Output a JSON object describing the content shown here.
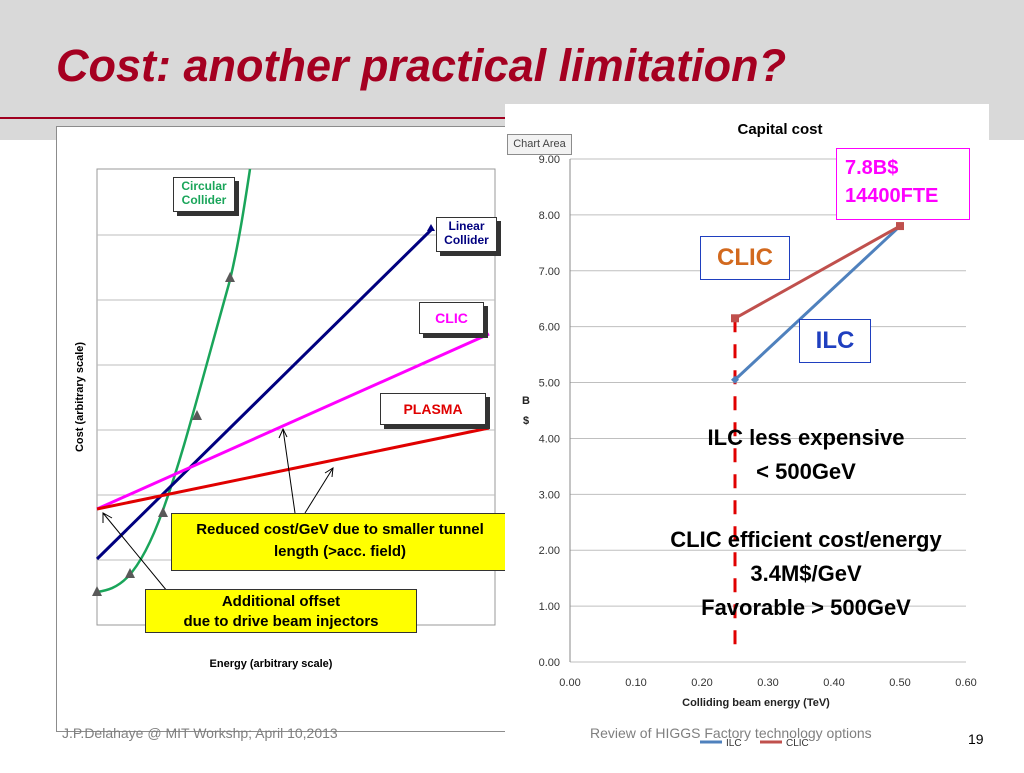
{
  "slide": {
    "title": "Cost: another practical limitation?",
    "footer_left": "J.P.Delahaye @ MIT Workshp; April 10,2013",
    "footer_center": "Review of HIGGS Factory technology options",
    "page_number": "19",
    "accent_color": "#a50021"
  },
  "left_chart": {
    "ylabel": "Cost (arbitrary scale)",
    "xlabel": "Energy (arbitrary scale)",
    "circular_badge": "Circular Collider",
    "linear_badge": "Linear Collider",
    "clic_badge": "CLIC",
    "plasma_badge": "PLASMA",
    "callout_reduced": "Reduced cost/GeV due to smaller tunnel length (>acc. field)",
    "callout_offset_line1": "Additional offset",
    "callout_offset_line2": "due to drive beam injectors",
    "colors": {
      "circular": "#1aa55a",
      "linear": "#00007f",
      "clic": "#ff00ff",
      "plasma": "#e00000"
    }
  },
  "chart_data": {
    "type": "line",
    "title": "Capital cost",
    "xlabel": "Colliding beam energy (TeV)",
    "ylabel": "B $",
    "xlim": [
      0,
      0.6
    ],
    "ylim": [
      0,
      9
    ],
    "x_ticks": [
      "0.00",
      "0.10",
      "0.20",
      "0.30",
      "0.40",
      "0.50",
      "0.60"
    ],
    "y_ticks": [
      "0.00",
      "1.00",
      "2.00",
      "3.00",
      "4.00",
      "5.00",
      "6.00",
      "7.00",
      "8.00",
      "9.00"
    ],
    "grid": true,
    "legend_position": "bottom",
    "series": [
      {
        "name": "ILC",
        "x": [
          0.25,
          0.5
        ],
        "y": [
          5.05,
          7.8
        ],
        "color": "#4f81bd"
      },
      {
        "name": "CLIC",
        "x": [
          0.25,
          0.5
        ],
        "y": [
          6.15,
          7.8
        ],
        "color": "#c0504d"
      }
    ],
    "chart_area_label": "Chart Area"
  },
  "right_annotations": {
    "cost_box_line1": "7.8B$",
    "cost_box_line2": "14400FTE",
    "clic_label": "CLIC",
    "ilc_label": "ILC",
    "text_lines": [
      "ILC less expensive",
      "< 500GeV",
      "",
      "CLIC efficient cost/energy",
      "3.4M$/GeV",
      "Favorable > 500GeV"
    ]
  }
}
